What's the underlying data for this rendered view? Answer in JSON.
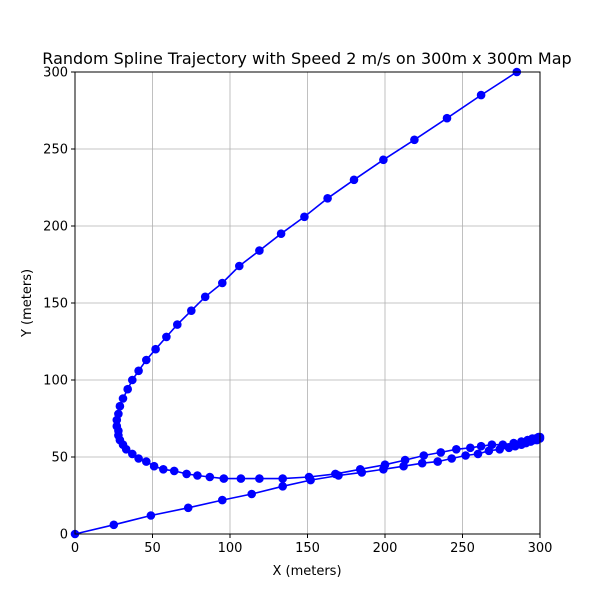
{
  "chart_data": {
    "type": "line",
    "title": "Random Spline Trajectory with Speed 2 m/s on 300m x 300m Map",
    "xlabel": "X (meters)",
    "ylabel": "Y (meters)",
    "xlim": [
      0,
      300
    ],
    "ylim": [
      0,
      300
    ],
    "xticks": [
      0,
      50,
      100,
      150,
      200,
      250,
      300
    ],
    "yticks": [
      0,
      50,
      100,
      150,
      200,
      250,
      300
    ],
    "grid": true,
    "color": "#0000ff",
    "series": [
      {
        "marker": "circle",
        "points": [
          [
            0,
            0
          ],
          [
            25,
            6
          ],
          [
            49,
            12
          ],
          [
            73,
            17
          ],
          [
            95,
            22
          ],
          [
            114,
            26
          ],
          [
            134,
            31
          ],
          [
            152,
            35
          ],
          [
            170,
            38
          ],
          [
            185,
            40
          ],
          [
            199,
            42
          ],
          [
            212,
            44
          ],
          [
            224,
            46
          ],
          [
            234,
            47
          ],
          [
            243,
            49
          ],
          [
            252,
            51
          ],
          [
            260,
            52
          ],
          [
            267,
            54
          ],
          [
            274,
            55
          ],
          [
            280,
            56
          ],
          [
            284,
            57
          ],
          [
            288,
            58
          ],
          [
            291,
            59
          ],
          [
            294,
            60
          ],
          [
            296,
            61
          ],
          [
            298,
            61
          ],
          [
            299,
            62
          ],
          [
            300,
            62
          ],
          [
            300,
            63
          ],
          [
            299,
            63
          ],
          [
            297,
            62
          ],
          [
            295,
            62
          ],
          [
            292,
            61
          ],
          [
            288,
            60
          ],
          [
            283,
            59
          ],
          [
            276,
            58
          ],
          [
            269,
            58
          ],
          [
            262,
            57
          ],
          [
            255,
            56
          ],
          [
            246,
            55
          ],
          [
            236,
            53
          ],
          [
            225,
            51
          ],
          [
            213,
            48
          ],
          [
            200,
            45
          ],
          [
            184,
            42
          ],
          [
            168,
            39
          ],
          [
            151,
            37
          ],
          [
            134,
            36
          ],
          [
            119,
            36
          ],
          [
            107,
            36
          ],
          [
            96,
            36
          ],
          [
            87,
            37
          ],
          [
            79,
            38
          ],
          [
            72,
            39
          ],
          [
            64,
            41
          ],
          [
            57,
            42
          ],
          [
            51,
            44
          ],
          [
            46,
            47
          ],
          [
            41,
            49
          ],
          [
            37,
            52
          ],
          [
            33,
            55
          ],
          [
            31,
            58
          ],
          [
            29,
            61
          ],
          [
            28,
            64
          ],
          [
            28,
            67
          ],
          [
            27,
            70
          ],
          [
            27,
            74
          ],
          [
            28,
            78
          ],
          [
            29,
            83
          ],
          [
            31,
            88
          ],
          [
            34,
            94
          ],
          [
            37,
            100
          ],
          [
            41,
            106
          ],
          [
            46,
            113
          ],
          [
            52,
            120
          ],
          [
            59,
            128
          ],
          [
            66,
            136
          ],
          [
            75,
            145
          ],
          [
            84,
            154
          ],
          [
            95,
            163
          ],
          [
            106,
            174
          ],
          [
            119,
            184
          ],
          [
            133,
            195
          ],
          [
            148,
            206
          ],
          [
            163,
            218
          ],
          [
            180,
            230
          ],
          [
            199,
            243
          ],
          [
            219,
            256
          ],
          [
            240,
            270
          ],
          [
            262,
            285
          ],
          [
            285,
            300
          ]
        ]
      }
    ]
  }
}
